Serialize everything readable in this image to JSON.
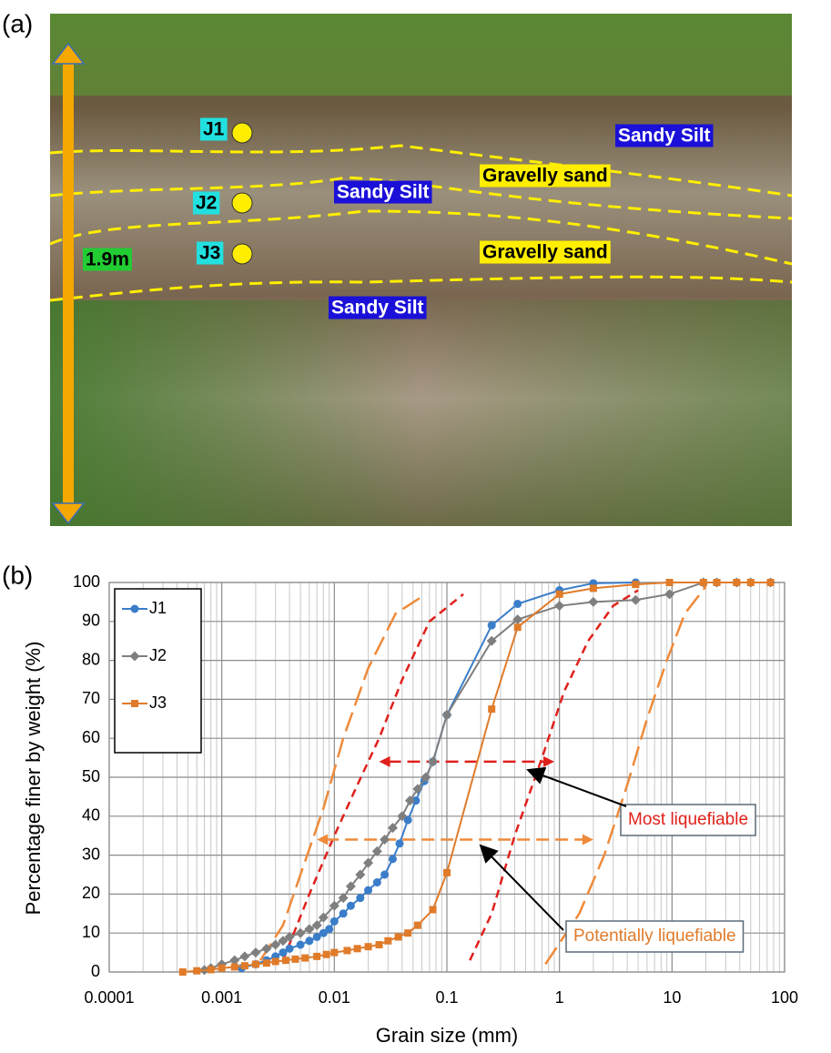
{
  "photo": {
    "panel_label": "(a)",
    "height_label": "1.9m",
    "samples": [
      "J1",
      "J2",
      "J3"
    ],
    "layers": [
      "Sandy Silt",
      "Gravelly sand",
      "Sandy Silt",
      "Gravelly sand",
      "Sandy Silt"
    ]
  },
  "chart_data": {
    "type": "line",
    "panel_label": "(b)",
    "x_label": "Grain size (mm)",
    "y_label": "Percentage finer by weight  (%)",
    "xscale": "log",
    "xlim": [
      0.0001,
      100
    ],
    "xticks": [
      0.0001,
      0.001,
      0.01,
      0.1,
      1,
      10,
      100
    ],
    "ylim": [
      0,
      100
    ],
    "yticks": [
      0,
      10,
      20,
      30,
      40,
      50,
      60,
      70,
      80,
      90,
      100
    ],
    "grid": true,
    "minor_grid": true,
    "legend": "upper left",
    "series": [
      {
        "name": "J1",
        "color": "#3a7dc9",
        "marker": "circle",
        "x": [
          0.0015,
          0.002,
          0.0025,
          0.003,
          0.0035,
          0.004,
          0.005,
          0.006,
          0.007,
          0.008,
          0.009,
          0.01,
          0.012,
          0.014,
          0.017,
          0.02,
          0.024,
          0.028,
          0.033,
          0.038,
          0.045,
          0.053,
          0.063,
          0.075,
          0.1,
          0.25,
          0.425,
          1,
          2,
          4.75
        ],
        "values": [
          1,
          2,
          3,
          4,
          5,
          6,
          7,
          8,
          9,
          10,
          11,
          13,
          15,
          17,
          19,
          21,
          23,
          25,
          29,
          33,
          39,
          44,
          49,
          54,
          66,
          89,
          94.5,
          98,
          99.8,
          100
        ]
      },
      {
        "name": "J2",
        "color": "#7f7f7f",
        "marker": "diamond",
        "x": [
          0.0007,
          0.0008,
          0.001,
          0.0013,
          0.0016,
          0.002,
          0.0025,
          0.003,
          0.0035,
          0.004,
          0.005,
          0.006,
          0.007,
          0.008,
          0.01,
          0.012,
          0.014,
          0.017,
          0.02,
          0.024,
          0.028,
          0.033,
          0.04,
          0.047,
          0.055,
          0.065,
          0.075,
          0.1,
          0.25,
          0.425,
          1,
          2,
          4.75,
          9.5,
          19,
          25,
          37.5,
          50,
          75
        ],
        "values": [
          0.5,
          1,
          2,
          3,
          4,
          5,
          6,
          7,
          8,
          9,
          10,
          11,
          12,
          14,
          17,
          19,
          22,
          25,
          28,
          31,
          34,
          37,
          40,
          44,
          47,
          50,
          54,
          66,
          85,
          90.5,
          94,
          95,
          95.5,
          97,
          100,
          100,
          100,
          100,
          100
        ]
      },
      {
        "name": "J3",
        "color": "#e07b2a",
        "marker": "square",
        "x": [
          0.00045,
          0.0006,
          0.0008,
          0.001,
          0.0013,
          0.0016,
          0.002,
          0.0025,
          0.003,
          0.0037,
          0.0045,
          0.0055,
          0.007,
          0.0085,
          0.01,
          0.013,
          0.016,
          0.02,
          0.025,
          0.03,
          0.037,
          0.045,
          0.055,
          0.075,
          0.1,
          0.25,
          0.425,
          1,
          2,
          4.75,
          9.5,
          19,
          25,
          37.5,
          50,
          75
        ],
        "values": [
          0,
          0.3,
          0.6,
          1,
          1.3,
          1.6,
          2,
          2.3,
          2.7,
          3,
          3.3,
          3.6,
          4,
          4.5,
          5,
          5.5,
          6,
          6.5,
          7,
          8,
          9,
          10,
          12,
          16,
          25.5,
          67.5,
          88.5,
          97,
          98.5,
          99.5,
          100,
          100,
          100,
          100,
          100,
          100
        ]
      }
    ],
    "boundaries": [
      {
        "color": "#ee8a3a",
        "dash": "long",
        "x": [
          0.0022,
          0.0035,
          0.005,
          0.008,
          0.012,
          0.02,
          0.035,
          0.065
        ],
        "values": [
          3,
          12,
          25,
          42,
          60,
          78,
          92,
          97
        ]
      },
      {
        "color": "#e0201b",
        "dash": "short",
        "x": [
          0.0035,
          0.006,
          0.01,
          0.016,
          0.025,
          0.04,
          0.07,
          0.14
        ],
        "values": [
          3,
          20,
          35,
          48,
          60,
          75,
          90,
          97
        ]
      },
      {
        "color": "#e0201b",
        "dash": "short",
        "x": [
          0.16,
          0.25,
          0.4,
          0.7,
          1.1,
          1.8,
          3,
          5
        ],
        "values": [
          3,
          15,
          35,
          55,
          72,
          85,
          94,
          98
        ]
      },
      {
        "color": "#ee8a3a",
        "dash": "long",
        "x": [
          0.75,
          1.5,
          2.5,
          4,
          6,
          9,
          13,
          20
        ],
        "values": [
          2,
          15,
          30,
          48,
          65,
          80,
          92,
          99
        ]
      }
    ],
    "arrows": [
      {
        "color": "#e0201b",
        "y": 54,
        "x": [
          0.025,
          0.9
        ]
      },
      {
        "color": "#ee8a3a",
        "y": 34,
        "x": [
          0.007,
          2
        ]
      }
    ],
    "annotations": [
      {
        "text": "Most liquefiable",
        "color": "#e0201b"
      },
      {
        "text": "Potentially liquefiable",
        "color": "#e07b2a"
      }
    ]
  }
}
